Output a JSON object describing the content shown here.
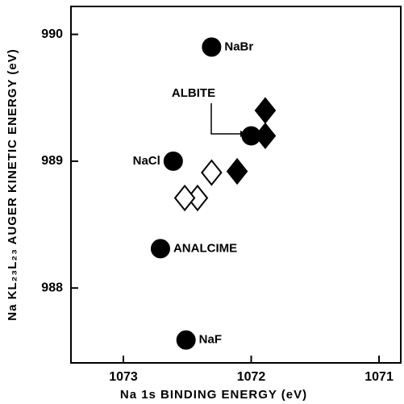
{
  "chart_data": {
    "type": "scatter",
    "xlabel": "Na 1s BINDING ENERGY (eV)",
    "ylabel": "Na KL₂₃L₂₃ AUGER KINETIC ENERGY (eV)",
    "xlim": [
      1073.41,
      1070.83
    ],
    "xticks": [
      1073,
      1072,
      1071
    ],
    "ylim": [
      987.41,
      990.22
    ],
    "yticks": [
      988,
      989,
      990
    ],
    "annotation": "ALBITE",
    "series": [
      {
        "marker": "circle",
        "filled": true,
        "color": "#000000",
        "x": [
          1072.31,
          1072.61,
          1072.71,
          1072.51,
          1072.0
        ],
        "y": [
          989.9,
          989.0,
          988.31,
          987.59,
          989.2
        ],
        "point_labels": [
          "NaBr",
          "NaCl",
          "ANALCIME",
          "NaF",
          null
        ]
      },
      {
        "marker": "diamond",
        "filled": true,
        "color": "#000000",
        "x": [
          1071.89,
          1071.89,
          1072.11
        ],
        "y": [
          989.4,
          989.2,
          988.92
        ]
      },
      {
        "marker": "diamond",
        "filled": false,
        "color": "#000000",
        "x": [
          1072.31,
          1072.42,
          1072.52
        ],
        "y": [
          988.91,
          988.71,
          988.71
        ]
      }
    ]
  }
}
